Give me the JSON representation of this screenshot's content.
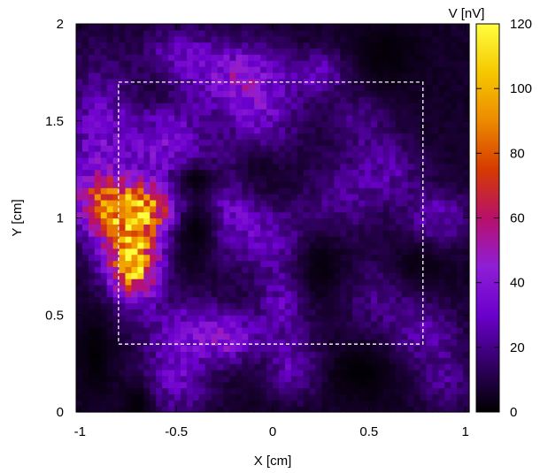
{
  "chart_data": {
    "type": "heatmap",
    "title": "",
    "xlabel": "X [cm]",
    "ylabel": "Y [cm]",
    "xlim": [
      -1.02,
      1.02
    ],
    "ylim": [
      0,
      2
    ],
    "x_ticks": [
      {
        "value": -1,
        "label": "-1"
      },
      {
        "value": -0.5,
        "label": "-0.5"
      },
      {
        "value": 0,
        "label": "0"
      },
      {
        "value": 0.5,
        "label": "0.5"
      },
      {
        "value": 1,
        "label": "1"
      }
    ],
    "y_ticks": [
      {
        "value": 0,
        "label": "0"
      },
      {
        "value": 0.5,
        "label": "0.5"
      },
      {
        "value": 1,
        "label": "1"
      },
      {
        "value": 1.5,
        "label": "1.5"
      },
      {
        "value": 2,
        "label": "2"
      }
    ],
    "colorbar": {
      "label": "V [nV]",
      "min": 0,
      "max": 120,
      "ticks": [
        {
          "value": 0,
          "label": "0"
        },
        {
          "value": 20,
          "label": "20"
        },
        {
          "value": 40,
          "label": "40"
        },
        {
          "value": 60,
          "label": "60"
        },
        {
          "value": 80,
          "label": "80"
        },
        {
          "value": 100,
          "label": "100"
        },
        {
          "value": 120,
          "label": "120"
        }
      ],
      "colormap": [
        "#000000",
        "#330066",
        "#6a00cc",
        "#8f1ed6",
        "#b8106a",
        "#d63a00",
        "#ec8a00",
        "#f6c800",
        "#ffff40"
      ]
    },
    "hotspots": [
      {
        "x": -0.72,
        "y": 0.76,
        "peak": 92,
        "sx": 0.09,
        "sy": 0.12
      },
      {
        "x": -0.76,
        "y": 1.0,
        "peak": 55,
        "sx": 0.13,
        "sy": 0.12
      },
      {
        "x": -0.86,
        "y": 1.08,
        "peak": 40,
        "sx": 0.12,
        "sy": 0.08
      },
      {
        "x": -0.62,
        "y": 1.05,
        "peak": 42,
        "sx": 0.1,
        "sy": 0.08
      },
      {
        "x": -0.9,
        "y": 1.35,
        "peak": 28,
        "sx": 0.12,
        "sy": 0.3
      },
      {
        "x": -0.55,
        "y": 1.38,
        "peak": 30,
        "sx": 0.14,
        "sy": 0.2
      },
      {
        "x": -0.2,
        "y": 1.75,
        "peak": 30,
        "sx": 0.16,
        "sy": 0.12
      },
      {
        "x": -0.05,
        "y": 1.55,
        "peak": 24,
        "sx": 0.14,
        "sy": 0.16
      },
      {
        "x": -0.5,
        "y": 1.85,
        "peak": 18,
        "sx": 0.12,
        "sy": 0.1
      },
      {
        "x": 0.25,
        "y": 1.75,
        "peak": 20,
        "sx": 0.1,
        "sy": 0.08
      },
      {
        "x": -0.22,
        "y": 1.08,
        "peak": 24,
        "sx": 0.1,
        "sy": 0.18
      },
      {
        "x": 0.0,
        "y": 0.9,
        "peak": 20,
        "sx": 0.14,
        "sy": 0.12
      },
      {
        "x": 0.05,
        "y": 0.55,
        "peak": 22,
        "sx": 0.1,
        "sy": 0.14
      },
      {
        "x": -0.45,
        "y": 0.42,
        "peak": 25,
        "sx": 0.16,
        "sy": 0.12
      },
      {
        "x": -0.22,
        "y": 0.38,
        "peak": 28,
        "sx": 0.1,
        "sy": 0.08
      },
      {
        "x": -0.5,
        "y": 0.15,
        "peak": 22,
        "sx": 0.12,
        "sy": 0.12
      },
      {
        "x": 0.12,
        "y": 0.22,
        "peak": 22,
        "sx": 0.1,
        "sy": 0.1
      },
      {
        "x": 0.35,
        "y": 1.1,
        "peak": 16,
        "sx": 0.12,
        "sy": 0.14
      },
      {
        "x": 0.6,
        "y": 1.25,
        "peak": 18,
        "sx": 0.12,
        "sy": 0.12
      },
      {
        "x": 0.85,
        "y": 1.0,
        "peak": 22,
        "sx": 0.12,
        "sy": 0.1
      },
      {
        "x": 0.55,
        "y": 0.6,
        "peak": 14,
        "sx": 0.14,
        "sy": 0.14
      },
      {
        "x": 0.8,
        "y": 0.4,
        "peak": 18,
        "sx": 0.12,
        "sy": 0.12
      },
      {
        "x": 0.9,
        "y": 0.15,
        "peak": 14,
        "sx": 0.1,
        "sy": 0.1
      },
      {
        "x": 0.45,
        "y": 1.5,
        "peak": 14,
        "sx": 0.1,
        "sy": 0.1
      }
    ],
    "cold_regions": [
      {
        "x": -0.4,
        "y": 0.95,
        "depth": 0.85,
        "sx": 0.08,
        "sy": 0.12
      },
      {
        "x": -0.4,
        "y": 1.2,
        "depth": 0.9,
        "sx": 0.1,
        "sy": 0.06
      },
      {
        "x": -0.92,
        "y": 0.3,
        "depth": 0.9,
        "sx": 0.06,
        "sy": 0.15
      },
      {
        "x": -0.7,
        "y": 0.05,
        "depth": 0.9,
        "sx": 0.06,
        "sy": 0.08
      },
      {
        "x": 0.25,
        "y": 0.75,
        "depth": 0.8,
        "sx": 0.1,
        "sy": 0.14
      },
      {
        "x": 0.75,
        "y": 0.75,
        "depth": 0.7,
        "sx": 0.12,
        "sy": 0.1
      },
      {
        "x": 0.6,
        "y": 1.85,
        "depth": 0.8,
        "sx": 0.12,
        "sy": 0.12
      },
      {
        "x": -0.1,
        "y": 1.25,
        "depth": 0.6,
        "sx": 0.1,
        "sy": 0.1
      },
      {
        "x": -0.6,
        "y": 1.65,
        "depth": 0.5,
        "sx": 0.08,
        "sy": 0.08
      },
      {
        "x": 0.45,
        "y": 0.2,
        "depth": 0.9,
        "sx": 0.14,
        "sy": 0.1
      }
    ],
    "background_level": 6,
    "region_outline": {
      "x_min": -0.8,
      "x_max": 0.78,
      "y_min": 0.35,
      "y_max": 1.7,
      "style": "dashed",
      "color": "#ffffff"
    },
    "grid": false,
    "legend": "none"
  }
}
